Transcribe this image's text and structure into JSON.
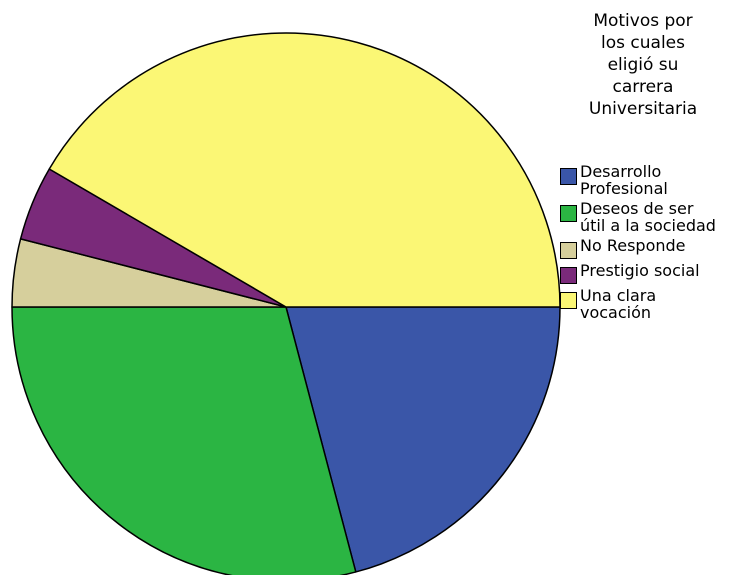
{
  "chart_data": {
    "type": "pie",
    "legend_title": [
      "Motivos por",
      "los cuales",
      "eligió su",
      "carrera",
      "Universitaria"
    ],
    "series": [
      {
        "name": "Desarrollo Profesional",
        "color": "#3a56a8",
        "value": 20.9
      },
      {
        "name": "Deseos de ser útil a la sociedad",
        "color": "#2bb543",
        "value": 29.1
      },
      {
        "name": "No Responde",
        "color": "#d6cf9c",
        "value": 4.0
      },
      {
        "name": "Prestigio social",
        "color": "#7a2a7a",
        "value": 4.4
      },
      {
        "name": "Una clara vocación",
        "color": "#fbf775",
        "value": 41.6
      }
    ],
    "start_angle": 0,
    "direction": "clockwise",
    "legend": "right"
  }
}
